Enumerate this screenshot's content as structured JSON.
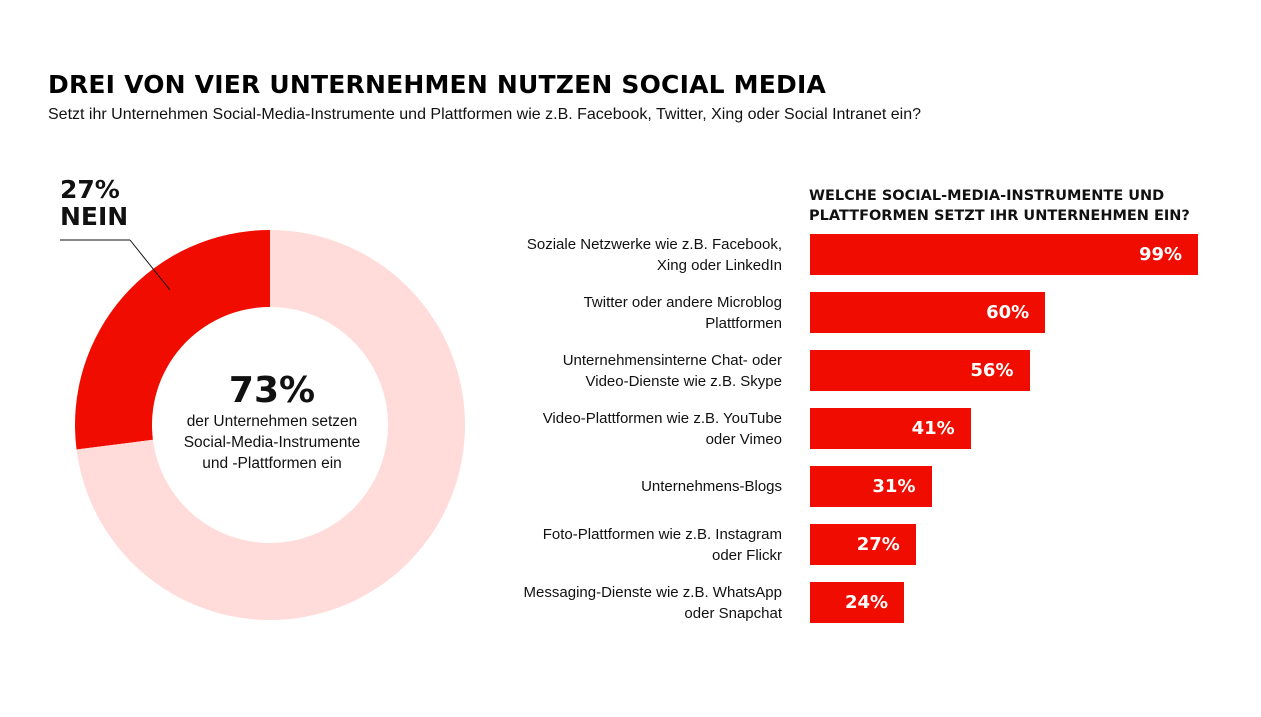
{
  "title": "DREI VON VIER UNTERNEHMEN NUTZEN SOCIAL MEDIA",
  "subtitle": "Setzt ihr Unternehmen Social-Media-Instrumente und Plattformen wie z.B. Facebook, Twitter, Xing oder Social Intranet ein?",
  "colors": {
    "accent": "#f00d00",
    "light": "#ffdcda"
  },
  "chart_data": [
    {
      "type": "pie",
      "donut": true,
      "slices": [
        {
          "label": "NEIN",
          "value": 27,
          "display": "27%"
        },
        {
          "label": "der Unternehmen setzen Social-Media-Instrumente und -Plattformen ein",
          "value": 73,
          "display": "73%"
        }
      ],
      "no_value": "27%",
      "no_label": "NEIN",
      "center_value": "73%",
      "center_text": [
        "der Unternehmen setzen",
        "Social-Media-Instrumente",
        "und -Plattformen ein"
      ]
    },
    {
      "type": "bar",
      "orientation": "horizontal",
      "title": "WELCHE SOCIAL-MEDIA-INSTRUMENTE UND PLATTFORMEN SETZT IHR UNTERNEHMEN EIN?",
      "title_lines": [
        "WELCHE SOCIAL-MEDIA-INSTRUMENTE UND",
        "PLATTFORMEN SETZT IHR UNTERNEHMEN EIN?"
      ],
      "categories": [
        [
          "Soziale Netzwerke wie z.B. Facebook,",
          "Xing oder LinkedIn"
        ],
        [
          "Twitter oder andere Microblog",
          "Plattformen"
        ],
        [
          "Unternehmensinterne Chat- oder",
          "Video-Dienste wie z.B. Skype"
        ],
        [
          "Video-Plattformen wie z.B. YouTube",
          "oder Vimeo"
        ],
        [
          "Unternehmens-Blogs"
        ],
        [
          "Foto-Plattformen wie z.B. Instagram",
          "oder Flickr"
        ],
        [
          "Messaging-Dienste wie z.B. WhatsApp",
          "oder Snapchat"
        ]
      ],
      "values": [
        99,
        60,
        56,
        41,
        31,
        27,
        24
      ],
      "value_labels": [
        "99%",
        "60%",
        "56%",
        "41%",
        "31%",
        "27%",
        "24%"
      ],
      "xlim": [
        0,
        100
      ]
    }
  ]
}
